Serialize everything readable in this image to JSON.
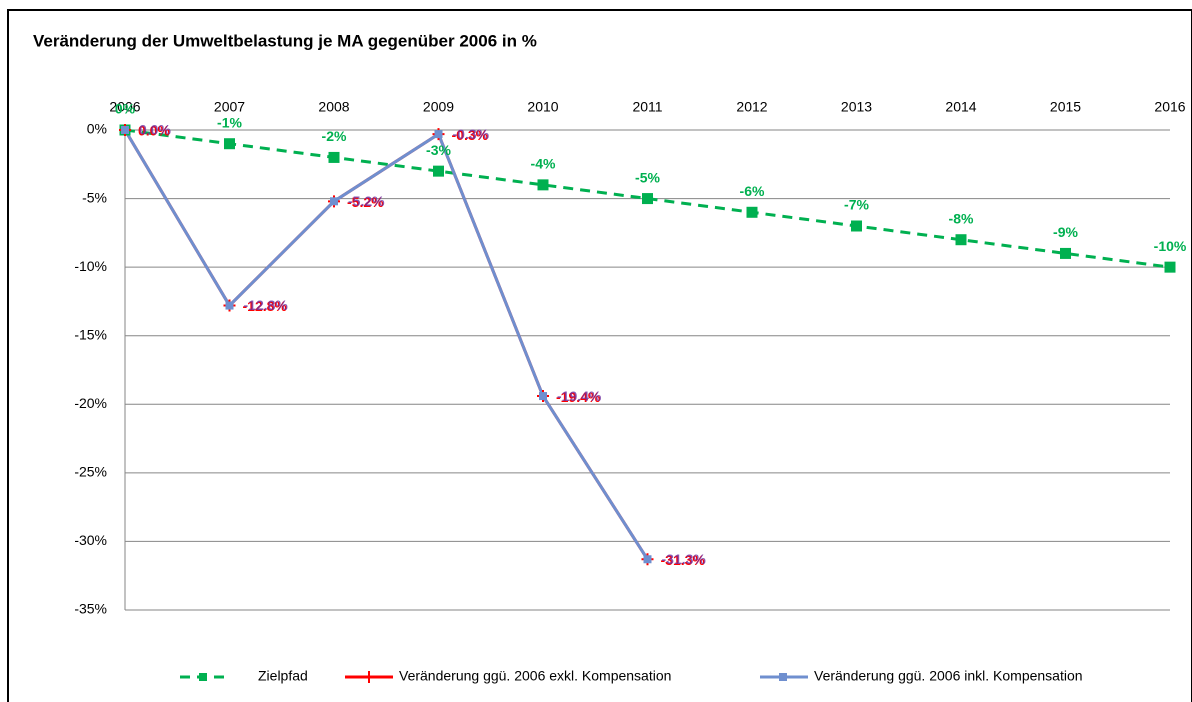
{
  "chart_data": {
    "type": "line",
    "title": "Veränderung der Umweltbelastung je MA gegenüber 2006 in %",
    "categories": [
      "2006",
      "2007",
      "2008",
      "2009",
      "2010",
      "2011",
      "2012",
      "2013",
      "2014",
      "2015",
      "2016"
    ],
    "ylim": [
      -35,
      0
    ],
    "yticks": [
      {
        "value": 0,
        "label": "0%"
      },
      {
        "value": -5,
        "label": "-5%"
      },
      {
        "value": -10,
        "label": "-10%"
      },
      {
        "value": -15,
        "label": "-15%"
      },
      {
        "value": -20,
        "label": "-20%"
      },
      {
        "value": -25,
        "label": "-25%"
      },
      {
        "value": -30,
        "label": "-30%"
      },
      {
        "value": -35,
        "label": "-35%"
      }
    ],
    "grid": true,
    "legend": "bottom",
    "series": [
      {
        "name": "Zielpfad",
        "color": "#00b050",
        "dashed": true,
        "marker": "square",
        "values": [
          0,
          -1,
          -2,
          -3,
          -4,
          -5,
          -6,
          -7,
          -8,
          -9,
          -10
        ],
        "value_labels": [
          "0%",
          "-1%",
          "-2%",
          "-3%",
          "-4%",
          "-5%",
          "-6%",
          "-7%",
          "-8%",
          "-9%",
          "-10%"
        ]
      },
      {
        "name": "Veränderung ggü. 2006 exkl. Kompensation",
        "color": "#ff0000",
        "marker": "cross",
        "values": [
          0,
          -12.8,
          -5.2,
          -0.3,
          -19.4,
          -31.3,
          null,
          null,
          null,
          null,
          null
        ],
        "value_labels": [
          "0.0%",
          "-12.8%",
          "-5.2%",
          "-0.3%",
          "-19.4%",
          "-31.3%",
          null,
          null,
          null,
          null,
          null
        ]
      },
      {
        "name": "Veränderung ggü. 2006 inkl. Kompensation",
        "color": "#6f8fcf",
        "marker": "square",
        "values": [
          0,
          -12.8,
          -5.2,
          -0.3,
          -19.4,
          -31.3,
          null,
          null,
          null,
          null,
          null
        ],
        "value_labels": [
          "0.0%",
          "-12.8%",
          "-5.2%",
          "-0.3%",
          "-19.4%",
          "-31.3%",
          null,
          null,
          null,
          null,
          null
        ]
      }
    ]
  }
}
